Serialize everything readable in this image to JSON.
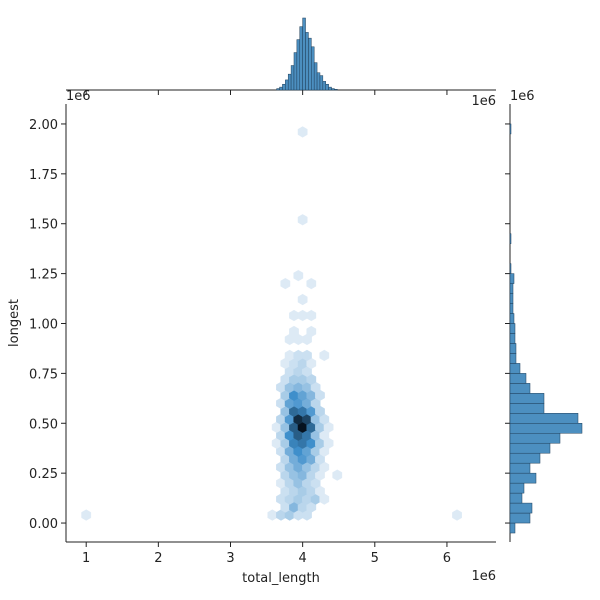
{
  "chart_data": [
    {
      "type": "hexbin",
      "xlabel": "total_length",
      "ylabel": "longest",
      "x_offset_text": "1e6",
      "y_offset_text": "1e6",
      "xlim": [
        0.72,
        6.68
      ],
      "ylim": [
        -0.095,
        2.1
      ],
      "xticks": [
        1,
        2,
        3,
        4,
        5,
        6
      ],
      "yticks": [
        {
          "value": 0,
          "label": "0.00"
        },
        {
          "value": 0.25,
          "label": "0.25"
        },
        {
          "value": 0.5,
          "label": "0.50"
        },
        {
          "value": 0.75,
          "label": "0.75"
        },
        {
          "value": 1,
          "label": "1.00"
        },
        {
          "value": 1.25,
          "label": "1.25"
        },
        {
          "value": 1.5,
          "label": "1.50"
        },
        {
          "value": 1.75,
          "label": "1.75"
        },
        {
          "value": 2,
          "label": "2.00"
        }
      ],
      "cmap": [
        "#eef4fa",
        "#3f8fcb",
        "#06121f"
      ],
      "cells": [
        [
          3.58,
          0.04,
          1
        ],
        [
          3.7,
          0.04,
          3
        ],
        [
          3.82,
          0.04,
          4
        ],
        [
          3.94,
          0.04,
          2
        ],
        [
          4.06,
          0.04,
          2
        ],
        [
          1.0,
          0.04,
          1
        ],
        [
          6.14,
          0.04,
          1
        ],
        [
          3.76,
          0.08,
          2
        ],
        [
          3.88,
          0.08,
          6
        ],
        [
          4.0,
          0.08,
          3
        ],
        [
          4.12,
          0.08,
          2
        ],
        [
          3.7,
          0.12,
          2
        ],
        [
          3.82,
          0.12,
          3
        ],
        [
          3.94,
          0.12,
          4
        ],
        [
          4.06,
          0.12,
          3
        ],
        [
          4.18,
          0.12,
          4
        ],
        [
          4.3,
          0.12,
          1
        ],
        [
          3.76,
          0.16,
          2
        ],
        [
          3.88,
          0.16,
          3
        ],
        [
          4.0,
          0.16,
          4
        ],
        [
          4.12,
          0.16,
          3
        ],
        [
          4.24,
          0.16,
          1
        ],
        [
          3.7,
          0.2,
          1
        ],
        [
          3.82,
          0.2,
          3
        ],
        [
          3.94,
          0.2,
          5
        ],
        [
          4.06,
          0.2,
          3
        ],
        [
          4.18,
          0.2,
          2
        ],
        [
          3.76,
          0.24,
          3
        ],
        [
          3.88,
          0.24,
          5
        ],
        [
          4.0,
          0.24,
          6
        ],
        [
          4.12,
          0.24,
          3
        ],
        [
          4.24,
          0.24,
          1
        ],
        [
          4.48,
          0.24,
          1
        ],
        [
          3.7,
          0.28,
          2
        ],
        [
          3.82,
          0.28,
          5
        ],
        [
          3.94,
          0.28,
          7
        ],
        [
          4.06,
          0.28,
          5
        ],
        [
          4.18,
          0.28,
          3
        ],
        [
          4.3,
          0.28,
          1
        ],
        [
          3.76,
          0.32,
          3
        ],
        [
          3.88,
          0.32,
          7
        ],
        [
          4.0,
          0.32,
          9
        ],
        [
          4.12,
          0.32,
          7
        ],
        [
          4.24,
          0.32,
          2
        ],
        [
          3.7,
          0.36,
          2
        ],
        [
          3.82,
          0.36,
          7
        ],
        [
          3.94,
          0.36,
          10
        ],
        [
          4.06,
          0.36,
          8
        ],
        [
          4.18,
          0.36,
          4
        ],
        [
          4.3,
          0.36,
          1
        ],
        [
          3.64,
          0.4,
          1
        ],
        [
          3.76,
          0.4,
          4
        ],
        [
          3.88,
          0.4,
          11
        ],
        [
          4.0,
          0.4,
          12
        ],
        [
          4.12,
          0.4,
          10
        ],
        [
          4.24,
          0.4,
          4
        ],
        [
          4.36,
          0.4,
          1
        ],
        [
          3.7,
          0.44,
          3
        ],
        [
          3.82,
          0.44,
          10
        ],
        [
          3.94,
          0.44,
          14
        ],
        [
          4.06,
          0.44,
          12
        ],
        [
          4.18,
          0.44,
          5
        ],
        [
          4.3,
          0.44,
          1
        ],
        [
          3.64,
          0.48,
          1
        ],
        [
          3.76,
          0.48,
          5
        ],
        [
          3.88,
          0.48,
          14
        ],
        [
          4.0,
          0.48,
          20
        ],
        [
          4.12,
          0.48,
          13
        ],
        [
          4.24,
          0.48,
          4
        ],
        [
          4.36,
          0.48,
          1
        ],
        [
          3.7,
          0.52,
          3
        ],
        [
          3.82,
          0.52,
          9
        ],
        [
          3.94,
          0.52,
          18
        ],
        [
          4.06,
          0.52,
          16
        ],
        [
          4.18,
          0.52,
          5
        ],
        [
          4.3,
          0.52,
          2
        ],
        [
          3.76,
          0.56,
          5
        ],
        [
          3.88,
          0.56,
          13
        ],
        [
          4.0,
          0.56,
          12
        ],
        [
          4.12,
          0.56,
          9
        ],
        [
          4.24,
          0.56,
          3
        ],
        [
          3.7,
          0.6,
          2
        ],
        [
          3.82,
          0.6,
          8
        ],
        [
          3.94,
          0.6,
          9
        ],
        [
          4.06,
          0.6,
          7
        ],
        [
          4.18,
          0.6,
          3
        ],
        [
          3.76,
          0.64,
          4
        ],
        [
          3.88,
          0.64,
          10
        ],
        [
          4.0,
          0.64,
          8
        ],
        [
          4.12,
          0.64,
          6
        ],
        [
          4.24,
          0.64,
          2
        ],
        [
          3.7,
          0.68,
          2
        ],
        [
          3.82,
          0.68,
          5
        ],
        [
          3.94,
          0.68,
          6
        ],
        [
          4.06,
          0.68,
          5
        ],
        [
          4.18,
          0.68,
          2
        ],
        [
          3.76,
          0.72,
          2
        ],
        [
          3.88,
          0.72,
          4
        ],
        [
          4.0,
          0.72,
          4
        ],
        [
          4.12,
          0.72,
          3
        ],
        [
          3.82,
          0.76,
          2
        ],
        [
          3.94,
          0.76,
          3
        ],
        [
          4.06,
          0.76,
          2
        ],
        [
          3.76,
          0.8,
          1
        ],
        [
          3.88,
          0.8,
          2
        ],
        [
          4.0,
          0.8,
          3
        ],
        [
          4.12,
          0.8,
          1
        ],
        [
          3.82,
          0.84,
          1
        ],
        [
          3.94,
          0.84,
          2
        ],
        [
          4.06,
          0.84,
          2
        ],
        [
          4.3,
          0.84,
          1
        ],
        [
          3.82,
          0.92,
          1
        ],
        [
          3.94,
          0.92,
          1
        ],
        [
          4.06,
          0.92,
          1
        ],
        [
          3.88,
          0.96,
          1
        ],
        [
          4.12,
          0.96,
          1
        ],
        [
          3.88,
          1.04,
          1
        ],
        [
          4.0,
          1.04,
          1
        ],
        [
          4.12,
          1.04,
          1
        ],
        [
          4.0,
          1.12,
          1
        ],
        [
          3.76,
          1.2,
          1
        ],
        [
          4.12,
          1.2,
          1
        ],
        [
          3.94,
          1.24,
          1
        ],
        [
          4.0,
          1.52,
          1
        ],
        [
          4.0,
          1.96,
          1
        ]
      ]
    },
    {
      "type": "histogram",
      "orientation": "vertical",
      "offset_text": "1e6",
      "xlim": [
        0.72,
        6.68
      ],
      "color": "#4c8fc0",
      "edgecolor": "#1f3f5a",
      "bins": [
        3.64,
        3.68,
        3.72,
        3.76,
        3.8,
        3.84,
        3.88,
        3.92,
        3.96,
        4.0,
        4.04,
        4.08,
        4.12,
        4.16,
        4.2,
        4.24,
        4.28,
        4.32,
        4.36,
        4.4,
        4.44,
        4.48
      ],
      "values": [
        2,
        4,
        8,
        14,
        22,
        34,
        52,
        70,
        88,
        100,
        80,
        72,
        60,
        38,
        24,
        20,
        12,
        8,
        4,
        2,
        1
      ]
    },
    {
      "type": "histogram",
      "orientation": "horizontal",
      "offset_text": "1e6",
      "ylim": [
        -0.095,
        2.1
      ],
      "color": "#4c8fc0",
      "edgecolor": "#1f3f5a",
      "bins": [
        -0.05,
        0,
        0.05,
        0.1,
        0.15,
        0.2,
        0.25,
        0.3,
        0.35,
        0.4,
        0.45,
        0.5,
        0.55,
        0.6,
        0.65,
        0.7,
        0.75,
        0.8,
        0.85,
        0.9,
        0.95,
        1,
        1.05,
        1.1,
        1.15,
        1.2,
        1.25,
        1.3,
        1.35,
        1.4,
        1.45,
        1.5,
        1.55,
        1.6,
        1.65,
        1.7,
        1.75,
        1.8,
        1.85,
        1.9,
        1.95,
        2,
        2.05
      ],
      "values": [
        5,
        20,
        22,
        12,
        14,
        26,
        20,
        30,
        40,
        50,
        72,
        68,
        34,
        34,
        20,
        16,
        10,
        6,
        6,
        5,
        5,
        4,
        3,
        3,
        3,
        4,
        1,
        0,
        0,
        1,
        0,
        0,
        0,
        0,
        0,
        0,
        0,
        0,
        0,
        0,
        1,
        0
      ]
    }
  ]
}
